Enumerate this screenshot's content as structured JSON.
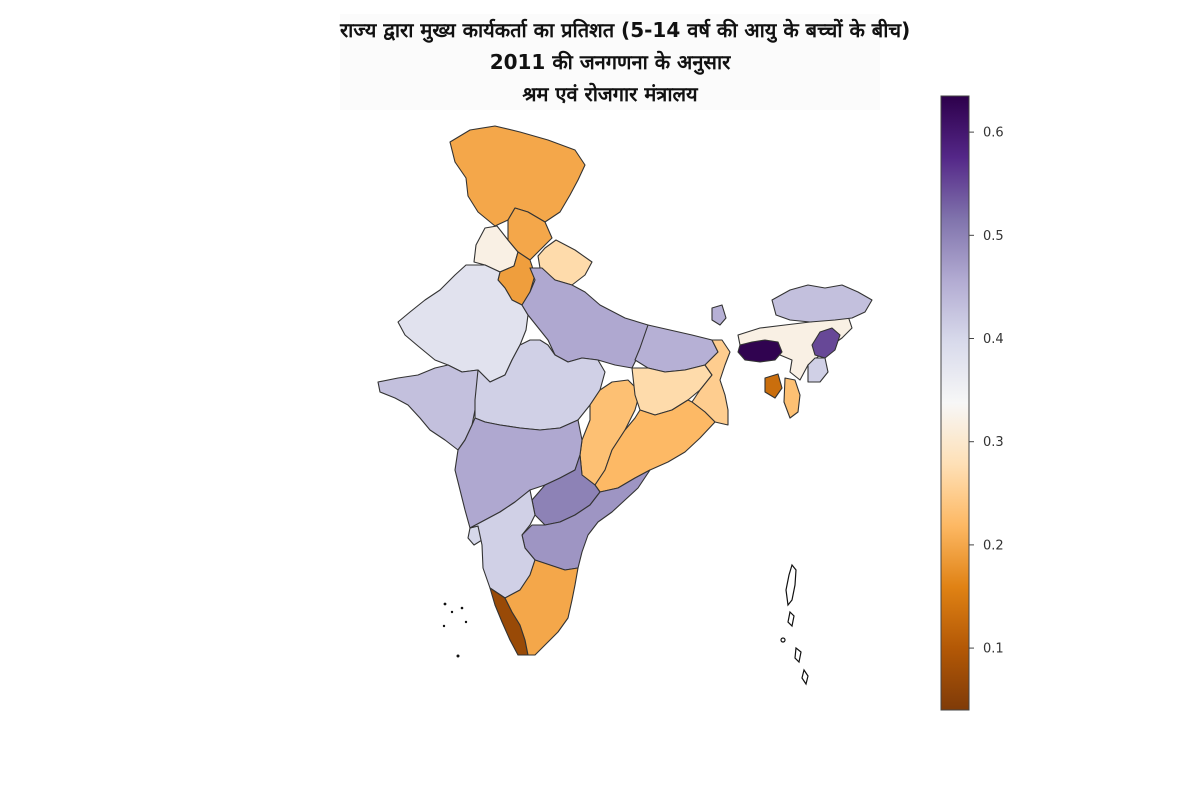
{
  "title": {
    "line1": "राज्य द्वारा मुख्य कार्यकर्ता का प्रतिशत (5-14 वर्ष की आयु के बच्चों के बीच)",
    "line2": "2011 की जनगणना के अनुसार",
    "line3": "श्रम एवं रोजगार मंत्रालय"
  },
  "colorbar": {
    "min": 0.04,
    "max": 0.635,
    "ticks": [
      "0.1",
      "0.2",
      "0.3",
      "0.4",
      "0.5",
      "0.6"
    ],
    "colormap": "PuOr",
    "colors": [
      "#7f3b08",
      "#b35806",
      "#e08214",
      "#fdb863",
      "#fee0b6",
      "#f7f7f7",
      "#d8daeb",
      "#b2abd2",
      "#8073ac",
      "#542788",
      "#2d004b"
    ]
  },
  "map_values": {
    "jammu_kashmir": 0.2,
    "himachal_pradesh": 0.32,
    "punjab": 0.2,
    "uttarakhand": 0.27,
    "haryana": 0.19,
    "rajasthan": 0.38,
    "uttar_pradesh": 0.46,
    "bihar": 0.45,
    "gujarat": 0.43,
    "madhya_pradesh": 0.41,
    "chhattisgarh": 0.23,
    "jharkhand": 0.27,
    "west_bengal": 0.25,
    "odisha": 0.22,
    "maharashtra": 0.46,
    "telangana": 0.5,
    "andhra_pradesh": 0.48,
    "karnataka": 0.41,
    "goa": 0.4,
    "kerala": 0.07,
    "tamil_nadu": 0.2,
    "sikkim": 0.45,
    "arunachal_pradesh": 0.43,
    "assam": 0.32,
    "meghalaya": 0.63,
    "nagaland": 0.55,
    "manipur": 0.41,
    "mizoram": 0.23,
    "tripura": 0.13
  }
}
